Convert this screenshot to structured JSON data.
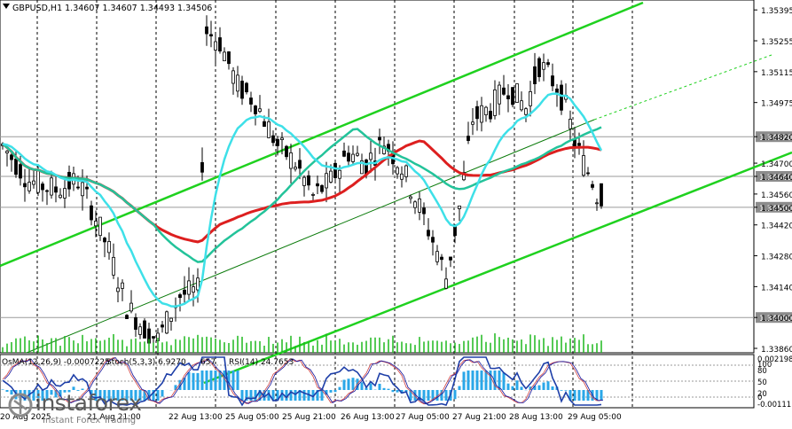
{
  "chart_data": {
    "type": "candlestick",
    "title": "GBPUSD,H1  1.34607 1.34607 1.34493 1.34506",
    "symbol": "GBPUSD,H1",
    "ohlc_last": [
      "1.34607",
      "1.34607",
      "1.34493",
      "1.34506"
    ],
    "y_range": [
      1.3384,
      1.3544
    ],
    "y_ticks": [
      "1.35395",
      "1.35255",
      "1.35115",
      "1.34975",
      "1.34820",
      "1.34700",
      "1.34640",
      "1.34560",
      "1.34500",
      "1.34420",
      "1.34280",
      "1.34140",
      "1.34000",
      "1.33860"
    ],
    "highlight_levels": [
      {
        "value": "1.34820",
        "price": 1.3482
      },
      {
        "value": "1.34640",
        "price": 1.3464
      },
      {
        "value": "1.34500",
        "price": 1.345
      },
      {
        "value": "1.34000",
        "price": 1.34
      }
    ],
    "x_labels": [
      "20 Aug 2025",
      "21 Aug 21:00",
      "22 Aug 13:00",
      "25 Aug 05:00",
      "25 Aug 21:00",
      "26 Aug 13:00",
      "27 Aug 05:00",
      "27 Aug 21:00",
      "28 Aug 13:00",
      "29 Aug 05:00"
    ],
    "indicator_labels": {
      "osma": "OsMA(12,26,9) -0.0007225",
      "stoch": "Stoch(5,3,3) 6.9270",
      "stoch_tail": "657",
      "rsi": "RSI(14) 24.7653"
    },
    "indicator_scale": [
      "0.002198",
      "100",
      "80",
      "50",
      "20",
      "0",
      "-0.00111"
    ],
    "colors": {
      "bull": "#000000",
      "bear": "#000000",
      "ema_fast": "#3ee0e8",
      "ema_slow": "#dd1f1f",
      "ema_mid": "#23c39a",
      "channel": "#1fd11f",
      "grid": "#000000",
      "osma": "#2aa7e8",
      "stoch_main": "#12129a",
      "stoch_signal": "#1e3fa8",
      "rsi": "#8a2be2"
    }
  },
  "watermark": {
    "brand": "instaforex",
    "tagline": "Instant Forex Trading"
  }
}
